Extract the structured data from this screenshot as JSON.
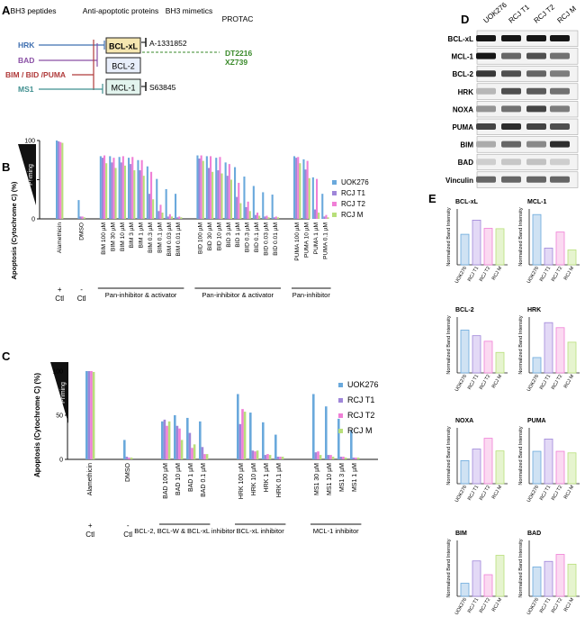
{
  "panel_letters": {
    "a": "A",
    "b": "B",
    "c": "C",
    "d": "D",
    "e": "E"
  },
  "panelA": {
    "headers": [
      "BH3 peptides",
      "Anti-apoptotic proteins",
      "BH3 mimetics",
      "PROTAC"
    ],
    "peptides": [
      "HRK",
      "BAD",
      "BIM / BID /PUMA",
      "MS1"
    ],
    "proteins": [
      "BCL-xL",
      "BCL-2",
      "MCL-1"
    ],
    "mimetics": [
      "A-1331852",
      "S63845"
    ],
    "protacs": [
      "DT2216",
      "XZ739"
    ],
    "colors": {
      "hrk": "#3f6fb0",
      "bad": "#8a4fa5",
      "bim": "#b03a3a",
      "ms1": "#3f8f8f",
      "protac": "#3a8a2a",
      "bclxl_fill": "#f5e6b0",
      "bcl2_fill": "#e8eefb",
      "mcl1_fill": "#e2f4ee"
    }
  },
  "series_colors": [
    "#6aa9dc",
    "#9f86d9",
    "#f07fd6",
    "#b8df7a"
  ],
  "chart_data": [
    {
      "type": "bar",
      "panel": "B",
      "ylabel": "Apoptosis (Cytochrome C) (%)",
      "priming_label": "Priming",
      "ylim": [
        0,
        100
      ],
      "yticks": [
        0,
        50,
        100
      ],
      "legend": [
        "UOK276",
        "RCJ T1",
        "RCJ T2",
        "RCJ M"
      ],
      "categories": [
        "Alamethicin",
        "DMSO",
        "BIM 100 µM",
        "BIM 30 µM",
        "BIM 10 µM",
        "BIM 3 µM",
        "BIM 1 µM",
        "BIM 0.3 µM",
        "BIM 0.1 µM",
        "BIM 0.03 µM",
        "BIM 0.01 µM",
        "BID 100 µM",
        "BID 30 µM",
        "BID 10 µM",
        "BID 3 µM",
        "BID 1 µM",
        "BID 0.3 µM",
        "BID 0.1 µM",
        "BID 0.03 µM",
        "BID 0.01 µM",
        "PUMA 100 µM",
        "PUMA 10 µM",
        "PUMA 1 µM",
        "PUMA 0.1 µM"
      ],
      "series": [
        {
          "name": "UOK276",
          "values": [
            100,
            24,
            80,
            80,
            79,
            78,
            75,
            67,
            51,
            38,
            32,
            81,
            80,
            78,
            72,
            66,
            54,
            42,
            34,
            31,
            80,
            76,
            53,
            32
          ]
        },
        {
          "name": "RCJ T1",
          "values": [
            99,
            3,
            78,
            72,
            72,
            70,
            62,
            32,
            10,
            3,
            2,
            77,
            65,
            62,
            55,
            28,
            15,
            5,
            3,
            2,
            78,
            63,
            12,
            3
          ]
        },
        {
          "name": "RCJ T2",
          "values": [
            98,
            3,
            81,
            78,
            80,
            79,
            75,
            60,
            18,
            6,
            3,
            81,
            80,
            79,
            70,
            46,
            22,
            8,
            4,
            3,
            79,
            74,
            51,
            5
          ]
        },
        {
          "name": "RCJ M",
          "values": [
            97,
            2,
            71,
            65,
            68,
            62,
            55,
            25,
            8,
            3,
            2,
            74,
            60,
            58,
            50,
            20,
            10,
            4,
            2,
            2,
            71,
            52,
            8,
            2
          ]
        }
      ],
      "groups": [
        {
          "sign": "+",
          "label": "Ctl"
        },
        {
          "sign": "-",
          "label": "Ctl"
        },
        {
          "label": "Pan-inhibitor & activator"
        },
        {
          "label": "Pan-inhibitor & activator"
        },
        {
          "label": "Pan-inhibitor"
        }
      ]
    },
    {
      "type": "bar",
      "panel": "C",
      "ylabel": "Apoptosis (Cytochrome C) (%)",
      "priming_label": "Priming",
      "ylim": [
        0,
        100
      ],
      "yticks": [
        0,
        50,
        100
      ],
      "legend": [
        "UOK276",
        "RCJ T1",
        "RCJ T2",
        "RCJ M"
      ],
      "categories": [
        "Alamethicin",
        "DMSO",
        "BAD 100 µM",
        "BAD 10 µM",
        "BAD 1 µM",
        "BAD 0.1 µM",
        "HRK 100 µM",
        "HRK 10 µM",
        "HRK 1 µM",
        "HRK 0.1 µM",
        "MS1 30 µM",
        "MS1 10 µM",
        "MS1 3 µM",
        "MS1 1 µM"
      ],
      "series": [
        {
          "name": "UOK276",
          "values": [
            100,
            22,
            43,
            50,
            47,
            43,
            74,
            53,
            42,
            28,
            74,
            60,
            46,
            33
          ]
        },
        {
          "name": "RCJ T1",
          "values": [
            100,
            3,
            45,
            38,
            30,
            14,
            40,
            10,
            5,
            3,
            8,
            5,
            3,
            2
          ]
        },
        {
          "name": "RCJ T2",
          "values": [
            100,
            2,
            38,
            35,
            13,
            6,
            57,
            9,
            6,
            3,
            9,
            5,
            3,
            2
          ]
        },
        {
          "name": "RCJ M",
          "values": [
            99,
            2,
            43,
            22,
            17,
            6,
            54,
            10,
            5,
            3,
            5,
            3,
            2,
            2
          ]
        }
      ],
      "groups": [
        {
          "sign": "+",
          "label": "Ctl"
        },
        {
          "sign": "-",
          "label": "Ctl"
        },
        {
          "label": "BCL-2, BCL-W & BCL-xL inhibitor"
        },
        {
          "label": "BCL-xL inhibitor"
        },
        {
          "label": "MCL-1 inhibitor"
        }
      ]
    },
    {
      "type": "bar",
      "panel": "E",
      "title": "BCL-xL",
      "ylabel": "Normalized Band Intensity",
      "categories": [
        "UOK276",
        "RCJ T1",
        "RCJ T2",
        "RCJ M"
      ],
      "values": [
        0.82,
        1.2,
        0.98,
        0.97
      ],
      "ylim": [
        0,
        1.5
      ]
    },
    {
      "type": "bar",
      "panel": "E",
      "title": "MCL-1",
      "ylabel": "Normalized Band Intensity",
      "categories": [
        "UOK276",
        "RCJ T1",
        "RCJ T2",
        "RCJ M"
      ],
      "values": [
        1.35,
        0.45,
        0.88,
        0.4
      ],
      "ylim": [
        0,
        1.5
      ]
    },
    {
      "type": "bar",
      "panel": "E",
      "title": "BCL-2",
      "ylabel": "Normalized Band Intensity",
      "categories": [
        "UOK276",
        "RCJ T1",
        "RCJ T2",
        "RCJ M"
      ],
      "values": [
        1.15,
        1.0,
        0.85,
        0.55
      ],
      "ylim": [
        0,
        1.5
      ]
    },
    {
      "type": "bar",
      "panel": "E",
      "title": "HRK",
      "ylabel": "Normalized Band Intensity",
      "categories": [
        "UOK276",
        "RCJ T1",
        "RCJ T2",
        "RCJ M"
      ],
      "values": [
        0.55,
        1.8,
        1.62,
        1.1
      ],
      "ylim": [
        0,
        2.0
      ]
    },
    {
      "type": "bar",
      "panel": "E",
      "title": "NOXA",
      "ylabel": "Normalized Band Intensity",
      "categories": [
        "UOK276",
        "RCJ T1",
        "RCJ T2",
        "RCJ M"
      ],
      "values": [
        0.62,
        0.93,
        1.22,
        0.88
      ],
      "ylim": [
        0,
        1.5
      ]
    },
    {
      "type": "bar",
      "panel": "E",
      "title": "PUMA",
      "ylabel": "Normalized Band Intensity",
      "categories": [
        "UOK276",
        "RCJ T1",
        "RCJ T2",
        "RCJ M"
      ],
      "values": [
        1.45,
        2.0,
        1.45,
        1.38
      ],
      "ylim": [
        0,
        2.5
      ]
    },
    {
      "type": "bar",
      "panel": "E",
      "title": "BIM",
      "ylabel": "Normalized Band Intensity",
      "categories": [
        "UOK276",
        "RCJ T1",
        "RCJ T2",
        "RCJ M"
      ],
      "values": [
        0.35,
        0.95,
        0.58,
        1.1
      ],
      "ylim": [
        0,
        1.5
      ]
    },
    {
      "type": "bar",
      "panel": "E",
      "title": "BAD",
      "ylabel": "Normalized Band Intensity",
      "categories": [
        "UOK276",
        "RCJ T1",
        "RCJ T2",
        "RCJ M"
      ],
      "values": [
        0.42,
        0.5,
        0.6,
        0.46
      ],
      "ylim": [
        0,
        0.8
      ]
    }
  ],
  "panelD": {
    "lanes": [
      "UOK276",
      "RCJ T1",
      "RCJ T2",
      "RCJ M"
    ],
    "blots": [
      {
        "label": "BCL-xL",
        "intensity": [
          0.95,
          0.95,
          0.95,
          0.95
        ]
      },
      {
        "label": "MCL-1",
        "intensity": [
          0.95,
          0.6,
          0.7,
          0.55
        ]
      },
      {
        "label": "BCL-2",
        "intensity": [
          0.8,
          0.7,
          0.6,
          0.5
        ]
      },
      {
        "label": "HRK",
        "intensity": [
          0.25,
          0.7,
          0.65,
          0.55
        ]
      },
      {
        "label": "NOXA",
        "intensity": [
          0.4,
          0.55,
          0.75,
          0.5
        ]
      },
      {
        "label": "PUMA",
        "intensity": [
          0.75,
          0.85,
          0.75,
          0.7
        ]
      },
      {
        "label": "BIM",
        "intensity": [
          0.3,
          0.6,
          0.45,
          0.85
        ]
      },
      {
        "label": "BAD",
        "intensity": [
          0.15,
          0.18,
          0.2,
          0.15
        ]
      },
      {
        "label": "Vinculin",
        "intensity": [
          0.6,
          0.6,
          0.6,
          0.6
        ]
      }
    ]
  }
}
